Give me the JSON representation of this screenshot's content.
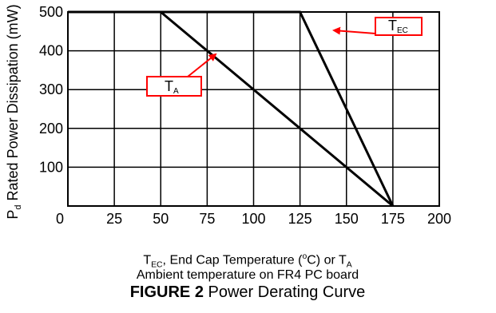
{
  "chart_data": {
    "type": "line",
    "ylabel": {
      "prefix": "P",
      "sub": "d",
      "text": " Rated Power Dissipation (mW)"
    },
    "x_ticks": [
      "0",
      "25",
      "50",
      "75",
      "100",
      "125",
      "150",
      "175",
      "200"
    ],
    "y_ticks": [
      "100",
      "200",
      "300",
      "400",
      "500"
    ],
    "xlim": [
      0,
      200
    ],
    "ylim": [
      0,
      500
    ],
    "grid": true,
    "series": [
      {
        "x": [
          0,
          125,
          175
        ],
        "y": [
          500,
          500,
          0
        ]
      },
      {
        "x": [
          0,
          50,
          175
        ],
        "y": [
          500,
          500,
          0
        ]
      }
    ],
    "annotations": [
      {
        "prefix": "T",
        "sub": "EC",
        "arrow_color": "#ff0000"
      },
      {
        "prefix": "T",
        "sub": "A",
        "arrow_color": "#ff0000"
      }
    ]
  },
  "caption": {
    "line1": {
      "a": "T",
      "a_sub": "EC",
      "b": ", End Cap Temperature (",
      "b_sup": "o",
      "c": "C) or T",
      "c_sub": "A"
    },
    "line2": "Ambient temperature on FR4 PC board",
    "figure_label": "FIGURE 2",
    "figure_title": " Power Derating Curve"
  }
}
